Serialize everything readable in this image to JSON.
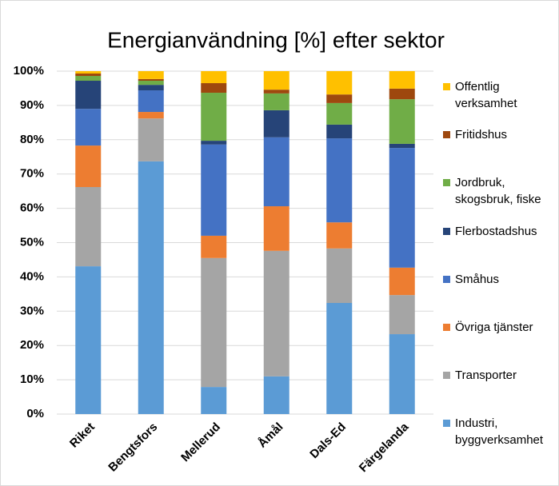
{
  "chart_data": {
    "type": "stacked_bar",
    "title": "Energianvändning [%] efter sektor",
    "categories": [
      "Riket",
      "Bengtsfors",
      "Mellerud",
      "Åmål",
      "Dals-Ed",
      "Färgelanda"
    ],
    "series": [
      {
        "name": "Industri, byggverksamhet",
        "color": "#5b9bd5",
        "values": [
          43.1,
          73.7,
          7.9,
          11.0,
          32.4,
          23.3
        ]
      },
      {
        "name": "Transporter",
        "color": "#a5a5a5",
        "values": [
          23.1,
          12.5,
          37.6,
          36.6,
          15.9,
          11.4
        ]
      },
      {
        "name": "Övriga tjänster",
        "color": "#ed7d31",
        "values": [
          12.1,
          1.9,
          6.5,
          13.0,
          7.6,
          8.0
        ]
      },
      {
        "name": "Småhus",
        "color": "#4472c4",
        "values": [
          10.7,
          6.3,
          26.6,
          20.1,
          24.5,
          34.9
        ]
      },
      {
        "name": "Flerbostadshus",
        "color": "#264478",
        "values": [
          8.2,
          1.6,
          1.1,
          7.9,
          4.0,
          1.2
        ]
      },
      {
        "name": "Jordbruk, skogsbruk, fiske",
        "color": "#70ad47",
        "values": [
          1.4,
          1.2,
          14.0,
          4.9,
          6.3,
          13.0
        ]
      },
      {
        "name": "Fritidshus",
        "color": "#9e480e",
        "values": [
          0.7,
          0.5,
          2.8,
          1.1,
          2.5,
          3.1
        ]
      },
      {
        "name": "Offentlig verksamhet",
        "color": "#ffc000",
        "values": [
          0.7,
          2.3,
          3.5,
          5.4,
          6.8,
          5.1
        ]
      }
    ],
    "ylim": [
      0,
      100
    ],
    "yticks": [
      {
        "value": 0,
        "label": "0%"
      },
      {
        "value": 10,
        "label": "10%"
      },
      {
        "value": 20,
        "label": "20%"
      },
      {
        "value": 30,
        "label": "30%"
      },
      {
        "value": 40,
        "label": "40%"
      },
      {
        "value": 50,
        "label": "50%"
      },
      {
        "value": 60,
        "label": "60%"
      },
      {
        "value": 70,
        "label": "70%"
      },
      {
        "value": 80,
        "label": "80%"
      },
      {
        "value": 90,
        "label": "90%"
      },
      {
        "value": 100,
        "label": "100%"
      }
    ],
    "grid": true,
    "legend": "right"
  }
}
